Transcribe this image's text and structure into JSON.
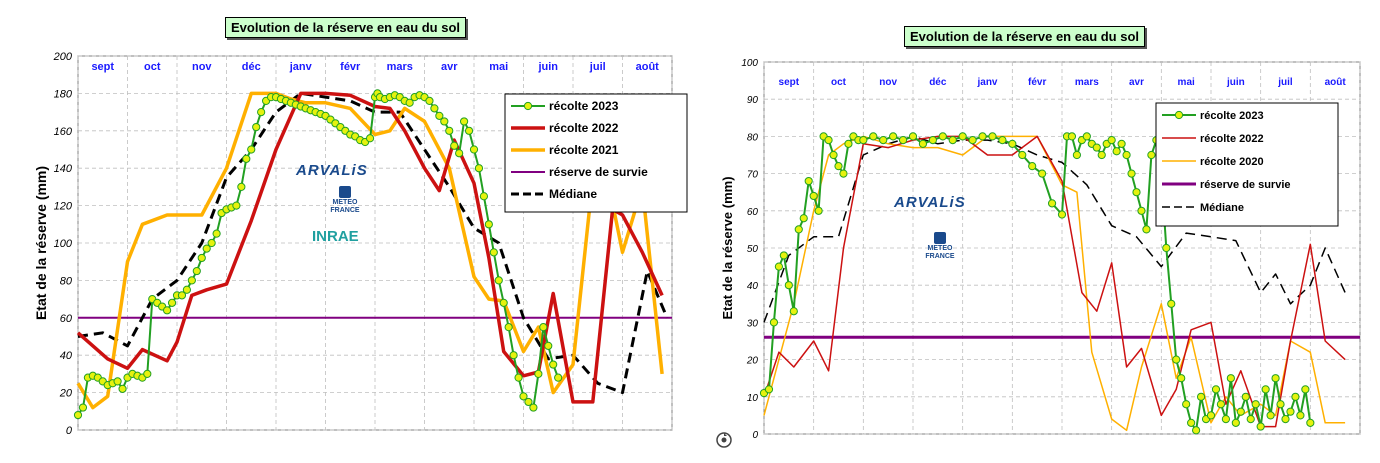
{
  "chart_data": [
    {
      "type": "line",
      "title": "Evolution de la réserve en eau du sol",
      "ylabel": "Etat de la réserve (mm)",
      "ylim": [
        0,
        200
      ],
      "yticks": [
        0,
        20,
        40,
        60,
        80,
        100,
        120,
        140,
        160,
        180,
        200
      ],
      "months": [
        "sept",
        "oct",
        "nov",
        "déc",
        "janv",
        "févr",
        "mars",
        "avr",
        "mai",
        "juin",
        "juil",
        "août"
      ],
      "xlim": [
        0,
        12
      ],
      "grid": true,
      "legend_position": "top-right",
      "logos": {
        "arvalis": "ARVALiS",
        "meteo": "METEO FRANCE",
        "inrae": "INRAE"
      },
      "series": [
        {
          "name": "récolte 2023",
          "color": "#22a022",
          "marker": "circle",
          "marker_color": "#e6f20e",
          "x": [
            0.0,
            0.1,
            0.2,
            0.3,
            0.4,
            0.5,
            0.6,
            0.7,
            0.8,
            0.9,
            1.0,
            1.1,
            1.2,
            1.3,
            1.4,
            1.5,
            1.6,
            1.7,
            1.8,
            1.9,
            2.0,
            2.1,
            2.2,
            2.3,
            2.4,
            2.5,
            2.6,
            2.7,
            2.8,
            2.9,
            3.0,
            3.1,
            3.2,
            3.3,
            3.4,
            3.5,
            3.6,
            3.7,
            3.8,
            3.9,
            4.0,
            4.1,
            4.2,
            4.3,
            4.4,
            4.5,
            4.6,
            4.7,
            4.8,
            4.9,
            5.0,
            5.1,
            5.2,
            5.3,
            5.4,
            5.5,
            5.6,
            5.7,
            5.8,
            5.9,
            6.0,
            6.05,
            6.1,
            6.2,
            6.3,
            6.4,
            6.5,
            6.6,
            6.7,
            6.8,
            6.9,
            7.0,
            7.1,
            7.2,
            7.3,
            7.4,
            7.5,
            7.6,
            7.7,
            7.8,
            7.9,
            8.0,
            8.1,
            8.2,
            8.3,
            8.4,
            8.5,
            8.6,
            8.7,
            8.8,
            8.9,
            9.0,
            9.1,
            9.2,
            9.3,
            9.4,
            9.5,
            9.6,
            9.7
          ],
          "y": [
            8,
            12,
            28,
            29,
            28,
            26,
            24,
            25,
            26,
            22,
            28,
            30,
            29,
            28,
            30,
            70,
            68,
            66,
            64,
            68,
            72,
            72,
            75,
            80,
            85,
            92,
            97,
            100,
            105,
            116,
            118,
            119,
            120,
            130,
            145,
            150,
            162,
            170,
            176,
            178,
            178,
            177,
            176,
            175,
            174,
            173,
            172,
            171,
            170,
            169,
            168,
            166,
            164,
            162,
            160,
            158,
            157,
            155,
            154,
            156,
            178,
            180,
            178,
            177,
            178,
            179,
            178,
            176,
            175,
            178,
            179,
            178,
            176,
            172,
            168,
            165,
            160,
            152,
            148,
            165,
            160,
            150,
            140,
            125,
            110,
            95,
            80,
            68,
            55,
            40,
            28,
            18,
            15,
            12,
            30,
            55,
            45,
            35,
            28
          ]
        },
        {
          "name": "récolte 2022",
          "color": "#cc1111",
          "x": [
            0,
            0.6,
            1.0,
            1.3,
            1.8,
            2.0,
            2.3,
            2.6,
            3.0,
            3.5,
            4.0,
            4.5,
            5.0,
            5.5,
            6.0,
            6.3,
            6.6,
            7.0,
            7.3,
            7.6,
            8.0,
            8.3,
            8.6,
            9.0,
            9.3,
            9.6,
            10.0,
            10.4,
            10.8,
            11.0,
            11.4,
            11.8
          ],
          "y": [
            52,
            38,
            33,
            43,
            37,
            47,
            72,
            75,
            78,
            112,
            150,
            180,
            180,
            179,
            173,
            172,
            160,
            140,
            128,
            155,
            132,
            92,
            42,
            29,
            31,
            73,
            15,
            15,
            118,
            115,
            95,
            72
          ]
        },
        {
          "name": "récolte 2021",
          "color": "#ffb000",
          "x": [
            0,
            0.3,
            0.6,
            1.0,
            1.3,
            1.8,
            2.5,
            3.0,
            3.5,
            4.0,
            4.3,
            4.6,
            5.0,
            5.5,
            6.0,
            6.3,
            6.6,
            7.0,
            7.5,
            8.0,
            8.3,
            8.6,
            9.0,
            9.3,
            9.6,
            10.0,
            10.5,
            11.0,
            11.4,
            11.8
          ],
          "y": [
            25,
            12,
            18,
            90,
            110,
            115,
            115,
            140,
            180,
            180,
            177,
            175,
            175,
            172,
            158,
            160,
            172,
            165,
            140,
            82,
            70,
            69,
            42,
            55,
            20,
            35,
            160,
            95,
            130,
            30
          ]
        },
        {
          "name": "réserve de survie",
          "color": "#800080",
          "x": [
            0,
            12
          ],
          "y": [
            60,
            60
          ]
        },
        {
          "name": "Médiane",
          "color": "#000000",
          "dash": true,
          "x": [
            0,
            0.5,
            1.0,
            1.5,
            2.0,
            2.5,
            3.0,
            3.5,
            4.0,
            4.5,
            5.0,
            5.5,
            6.0,
            6.5,
            7.0,
            7.5,
            8.0,
            8.5,
            9.0,
            9.5,
            10.0,
            10.5,
            11.0,
            11.5,
            11.9
          ],
          "y": [
            50,
            52,
            45,
            70,
            80,
            100,
            135,
            150,
            170,
            180,
            178,
            176,
            170,
            170,
            150,
            130,
            108,
            100,
            60,
            38,
            40,
            25,
            20,
            85,
            60
          ]
        }
      ]
    },
    {
      "type": "line",
      "title": "Evolution de la réserve en eau du sol",
      "ylabel": "Etat de la réserve (mm)",
      "ylim": [
        0,
        100
      ],
      "yticks": [
        0,
        10,
        20,
        30,
        40,
        50,
        60,
        70,
        80,
        90,
        100
      ],
      "months": [
        "sept",
        "oct",
        "nov",
        "déc",
        "janv",
        "févr",
        "mars",
        "avr",
        "mai",
        "juin",
        "juil",
        "août"
      ],
      "xlim": [
        0,
        12
      ],
      "grid": true,
      "legend_position": "top-right",
      "logos": {
        "arvalis": "ARVALiS",
        "meteo": "METEO FRANCE"
      },
      "series": [
        {
          "name": "récolte 2023",
          "color": "#22a022",
          "marker": "circle",
          "marker_color": "#e6f20e",
          "x": [
            0.0,
            0.1,
            0.2,
            0.3,
            0.4,
            0.5,
            0.6,
            0.7,
            0.8,
            0.9,
            1.0,
            1.1,
            1.2,
            1.3,
            1.4,
            1.5,
            1.6,
            1.7,
            1.8,
            1.9,
            2.0,
            2.2,
            2.4,
            2.6,
            2.8,
            3.0,
            3.2,
            3.4,
            3.6,
            3.8,
            4.0,
            4.2,
            4.4,
            4.6,
            4.8,
            5.0,
            5.2,
            5.4,
            5.6,
            5.8,
            6.0,
            6.1,
            6.2,
            6.3,
            6.4,
            6.5,
            6.6,
            6.7,
            6.8,
            6.9,
            7.0,
            7.1,
            7.2,
            7.3,
            7.4,
            7.5,
            7.6,
            7.7,
            7.8,
            7.9,
            8.0,
            8.1,
            8.2,
            8.3,
            8.4,
            8.5,
            8.6,
            8.7,
            8.8,
            8.9,
            9.0,
            9.1,
            9.2,
            9.3,
            9.4,
            9.5,
            9.6,
            9.7,
            9.8,
            9.9,
            10.0,
            10.1,
            10.2,
            10.3,
            10.4,
            10.5,
            10.6,
            10.7,
            10.8,
            10.9,
            11.0
          ],
          "y": [
            11,
            12,
            30,
            45,
            48,
            40,
            33,
            55,
            58,
            68,
            64,
            60,
            80,
            79,
            75,
            72,
            70,
            78,
            80,
            79,
            79,
            80,
            79,
            80,
            79,
            80,
            78,
            79,
            80,
            79,
            80,
            79,
            80,
            80,
            79,
            78,
            75,
            72,
            70,
            62,
            59,
            80,
            80,
            75,
            79,
            80,
            78,
            77,
            75,
            78,
            79,
            76,
            78,
            75,
            70,
            65,
            60,
            55,
            75,
            79,
            70,
            50,
            35,
            20,
            15,
            8,
            3,
            1,
            10,
            4,
            5,
            12,
            8,
            4,
            15,
            3,
            6,
            10,
            4,
            8,
            2,
            12,
            5,
            15,
            8,
            4,
            6,
            10,
            5,
            12,
            3
          ]
        },
        {
          "name": "récolte 2022",
          "color": "#cc1111",
          "x": [
            0,
            0.3,
            0.6,
            1.0,
            1.3,
            1.6,
            2.0,
            2.5,
            3.0,
            3.5,
            4.0,
            4.5,
            5.0,
            5.5,
            6.0,
            6.4,
            6.7,
            7.0,
            7.3,
            7.6,
            8.0,
            8.3,
            8.6,
            9.0,
            9.3,
            9.6,
            10.0,
            10.3,
            10.6,
            11.0,
            11.3,
            11.7
          ],
          "y": [
            10,
            22,
            18,
            25,
            17,
            50,
            78,
            77,
            79,
            80,
            80,
            75,
            75,
            80,
            68,
            38,
            33,
            46,
            18,
            23,
            5,
            12,
            28,
            30,
            8,
            17,
            2,
            2,
            25,
            51,
            25,
            20
          ]
        },
        {
          "name": "récolte 2020",
          "color": "#ffb000",
          "x": [
            0,
            0.3,
            0.6,
            1.0,
            1.3,
            1.6,
            2.0,
            2.5,
            3.0,
            3.5,
            4.0,
            4.5,
            5.0,
            5.5,
            6.0,
            6.3,
            6.6,
            7.0,
            7.3,
            7.6,
            8.0,
            8.3,
            8.6,
            9.0,
            9.3,
            9.6,
            10.0,
            10.3,
            10.6,
            11.0,
            11.3,
            11.7
          ],
          "y": [
            5,
            20,
            35,
            60,
            75,
            78,
            80,
            78,
            77,
            77,
            75,
            80,
            80,
            80,
            67,
            65,
            22,
            4,
            1,
            18,
            35,
            15,
            26,
            3,
            10,
            5,
            8,
            5,
            25,
            22,
            3,
            3
          ]
        },
        {
          "name": "réserve de survie",
          "color": "#800080",
          "x": [
            0,
            12
          ],
          "y": [
            26,
            26
          ]
        },
        {
          "name": "Médiane",
          "color": "#000000",
          "dash": true,
          "x": [
            0,
            0.5,
            1.0,
            1.5,
            2.0,
            2.5,
            3.0,
            3.5,
            4.0,
            4.5,
            5.0,
            5.5,
            6.0,
            6.5,
            7.0,
            7.5,
            8.0,
            8.5,
            9.0,
            9.5,
            10.0,
            10.3,
            10.6,
            11.0,
            11.3,
            11.7
          ],
          "y": [
            30,
            48,
            53,
            53,
            75,
            78,
            80,
            78,
            79,
            79,
            78,
            75,
            73,
            67,
            56,
            53,
            45,
            54,
            53,
            52,
            38,
            43,
            35,
            40,
            50,
            38
          ]
        }
      ]
    }
  ]
}
